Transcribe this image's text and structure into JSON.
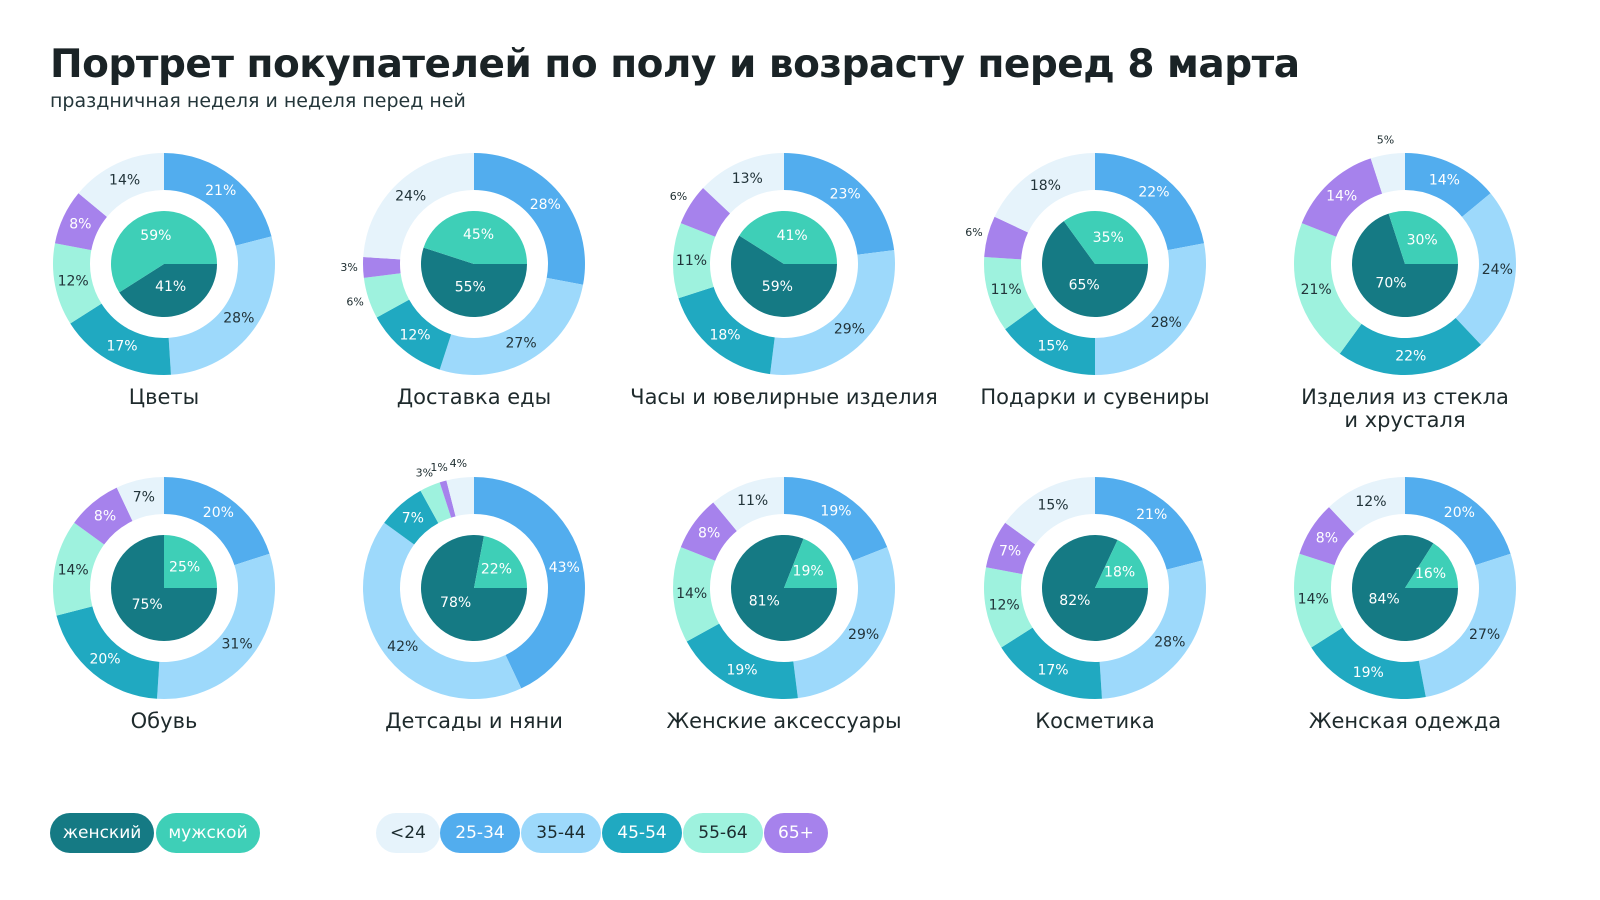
{
  "title": "Портрет покупателей по полу и возрасту перед 8 марта",
  "subtitle": "праздничная неделя и неделя перед ней",
  "colors": {
    "female": "#157a84",
    "male": "#3ecfb7",
    "age": [
      "#e6f3fb",
      "#52adee",
      "#9dd9fb",
      "#20a9c1",
      "#9ef2de",
      "#a682ec"
    ]
  },
  "legend": {
    "gender": [
      "женский",
      "мужской"
    ],
    "age": [
      "<24",
      "25-34",
      "35-44",
      "45-54",
      "55-64",
      "65+"
    ]
  },
  "chart_data": [
    {
      "type": "pie",
      "title": "Цветы",
      "age": [
        14,
        21,
        28,
        17,
        12,
        8
      ],
      "gender": [
        41,
        59
      ],
      "age_labels": [
        "14%",
        "21%",
        "28%",
        "17%",
        "12%",
        "8%"
      ],
      "gender_labels": [
        "41%",
        "59%"
      ]
    },
    {
      "type": "pie",
      "title": "Доставка еды",
      "age": [
        24,
        28,
        27,
        12,
        6,
        3
      ],
      "gender": [
        55,
        45
      ],
      "age_labels": [
        "24%",
        "28%",
        "27%",
        "12%",
        "6%",
        "3%"
      ],
      "gender_labels": [
        "55%",
        "45%"
      ]
    },
    {
      "type": "pie",
      "title": "Часы и ювелирные изделия",
      "age": [
        13,
        23,
        29,
        18,
        11,
        6
      ],
      "gender": [
        59,
        41
      ],
      "age_labels": [
        "13%",
        "23%",
        "29%",
        "18%",
        "11%",
        "6%"
      ],
      "gender_labels": [
        "59%",
        "41%"
      ]
    },
    {
      "type": "pie",
      "title": "Подарки и сувениры",
      "age": [
        18,
        22,
        28,
        15,
        11,
        6
      ],
      "gender": [
        65,
        35
      ],
      "age_labels": [
        "18%",
        "22%",
        "28%",
        "15%",
        "11%",
        "6%"
      ],
      "gender_labels": [
        "65%",
        "35%"
      ]
    },
    {
      "type": "pie",
      "title": "Изделия из стекла\nи хрусталя",
      "age": [
        5,
        14,
        24,
        22,
        21,
        14
      ],
      "gender": [
        70,
        30
      ],
      "age_labels": [
        "5%",
        "14%",
        "24%",
        "22%",
        "21%",
        "14%"
      ],
      "gender_labels": [
        "70%",
        "30%"
      ]
    },
    {
      "type": "pie",
      "title": "Обувь",
      "age": [
        7,
        20,
        31,
        20,
        14,
        8
      ],
      "gender": [
        75,
        25
      ],
      "age_labels": [
        "7%",
        "20%",
        "31%",
        "20%",
        "14%",
        "8%"
      ],
      "gender_labels": [
        "75%",
        "25%"
      ]
    },
    {
      "type": "pie",
      "title": "Детсады и няни",
      "age": [
        4,
        43,
        42,
        7,
        3,
        1
      ],
      "gender": [
        78,
        22
      ],
      "age_labels": [
        "4%",
        "43%",
        "42%",
        "7%",
        "3%",
        "1%"
      ],
      "gender_labels": [
        "78%",
        "22%"
      ]
    },
    {
      "type": "pie",
      "title": "Женские аксессуары",
      "age": [
        11,
        19,
        29,
        19,
        14,
        8
      ],
      "gender": [
        81,
        19
      ],
      "age_labels": [
        "11%",
        "19%",
        "29%",
        "19%",
        "14%",
        "8%"
      ],
      "gender_labels": [
        "81%",
        "19%"
      ]
    },
    {
      "type": "pie",
      "title": "Косметика",
      "age": [
        15,
        21,
        28,
        17,
        12,
        7
      ],
      "gender": [
        82,
        18
      ],
      "age_labels": [
        "15%",
        "21%",
        "28%",
        "17%",
        "12%",
        "7%"
      ],
      "gender_labels": [
        "82%",
        "18%"
      ]
    },
    {
      "type": "pie",
      "title": "Женская одежда",
      "age": [
        12,
        20,
        27,
        19,
        14,
        8
      ],
      "gender": [
        84,
        16
      ],
      "age_labels": [
        "12%",
        "20%",
        "27%",
        "19%",
        "14%",
        "8%"
      ],
      "gender_labels": [
        "84%",
        "16%"
      ]
    }
  ]
}
